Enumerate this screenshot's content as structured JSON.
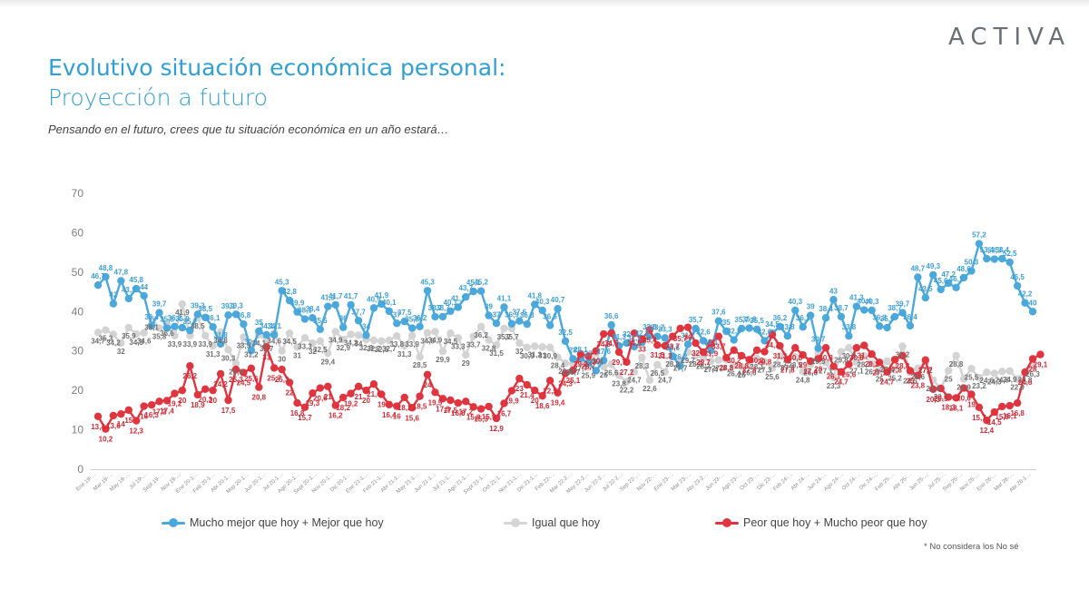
{
  "brand": "ACTIVA",
  "header": {
    "title": "Evolutivo situación económica personal:",
    "subtitle": "Proyección a futuro",
    "question": "Pensando en el futuro, crees que tu situación económica en un año estará…"
  },
  "legend": [
    {
      "label": "Mucho mejor que hoy + Mejor que hoy",
      "color": "#4aa8dc"
    },
    {
      "label": "Igual que hoy",
      "color": "#d6d6d6"
    },
    {
      "label": "Peor que hoy + Mucho peor que hoy",
      "color": "#e0353f"
    }
  ],
  "footnote": "* No considera los No sé",
  "chart_data": {
    "type": "line",
    "ylim": [
      0,
      70
    ],
    "yticks": [
      0,
      10,
      20,
      30,
      40,
      50,
      60,
      70
    ],
    "x_tick_labels": [
      "Ene 19-…",
      "Mar 19-…",
      "May 19-…",
      "Jul 19-…",
      "Sept 19-…",
      "Nov 19-…",
      "Ene 20-1…",
      "Feb 20-1…",
      "Abr 20-1…",
      "May 20-1…",
      "Jun 20-1…",
      "Jul 20-1…",
      "Ago 20-1…",
      "Sept 20-1…",
      "Nov 20-1…",
      "Dic 20-1…",
      "Ene 21-1…",
      "Feb 21-1…",
      "Abr 21-1…",
      "May 21-1…",
      "Jun 21-1…",
      "Jul 21-1…",
      "Ago 21-1…",
      "Sept 21-1…",
      "Oct 21-1…",
      "Nov 21-1…",
      "Dic 21-1…",
      "Feb 22-…",
      "Mar 22-2…",
      "May 22-2…",
      "Jun 22-2…",
      "Jul 22-2…",
      "Sep 22-…",
      "Nov 22-…",
      "Ene 23-…",
      "Mar 23-…",
      "Abr 23-2…",
      "Jun 23-…",
      "Ago 23-…",
      "Oct 23-…",
      "Dic 23-…",
      "Feb 24-…",
      "Abr 24-…",
      "Jun 24-…",
      "Ago 24-…",
      "Oct 24-…",
      "Dic 24-…",
      "Feb 25-…",
      "Abr 25-…",
      "Jun 25-…",
      "Jul 25-…",
      "Sep 25-…",
      "Nov 25-…",
      "Ene 26-…",
      "Mar 26-…",
      "Abr 26-1…"
    ],
    "series": [
      {
        "name": "Mucho mejor que hoy + Mejor que hoy",
        "color": "#4aa8dc",
        "values": [
          46.7,
          48.8,
          42,
          47.8,
          43.3,
          45.8,
          44,
          36.4,
          39.7,
          35.8,
          36.2,
          35.9,
          35.2,
          39.3,
          38.5,
          36.1,
          31.8,
          39.1,
          39.3,
          36.8,
          30.1,
          35,
          34.1,
          34.1,
          45.3,
          42.8,
          39.9,
          38.1,
          38.4,
          35.5,
          41.3,
          41.7,
          36,
          41.7,
          37.7,
          34,
          40.9,
          41.9,
          40.1,
          37,
          37.5,
          35.8,
          36.2,
          45.3,
          38.7,
          38.7,
          40.1,
          41.1,
          43.7,
          45.1,
          45.2,
          39,
          37,
          41.1,
          36.9,
          37.6,
          36.8,
          41.8,
          40.3,
          36.5,
          40.7,
          32.5,
          28,
          28.1,
          27,
          25,
          27.6,
          36.6,
          31.3,
          32,
          31.1,
          32.2,
          33.8,
          33.7,
          33.3,
          28.6,
          26.2,
          31.7,
          35.7,
          32.6,
          30.1,
          37.6,
          35,
          32.8,
          35.7,
          35.8,
          35.5,
          32.6,
          34.5,
          36.2,
          33.8,
          40.3,
          36.1,
          39,
          30.7,
          38.4,
          43,
          38.7,
          33.8,
          41.3,
          40.4,
          40.3,
          36.3,
          35.9,
          38.7,
          39.7,
          36.4,
          48.7,
          43.5,
          49.3,
          45.6,
          47.2,
          46.1,
          48.6,
          50.3,
          57.2,
          53.4,
          53.3,
          53.4,
          52.5,
          46.5,
          42.2,
          40
        ]
      },
      {
        "name": "Igual que hoy",
        "color": "#d3d3d3",
        "values": [
          34.7,
          35.3,
          34.2,
          32,
          35.9,
          34.3,
          34.6,
          38.1,
          35.8,
          36.6,
          33.9,
          41.9,
          33.9,
          38.5,
          33.9,
          31.3,
          34.8,
          30.3,
          26.8,
          33.5,
          31.2,
          34.1,
          32.7,
          34.6,
          30,
          34.5,
          31,
          33.3,
          32,
          32.5,
          29.4,
          34.9,
          32.9,
          34.2,
          34,
          32.9,
          32.7,
          32.5,
          32.7,
          33.8,
          31.3,
          33.9,
          28.5,
          34.6,
          34.9,
          29.9,
          34.5,
          33.3,
          29,
          33.7,
          36.2,
          32.8,
          31.5,
          35.7,
          35.7,
          32,
          30.9,
          31.2,
          31,
          30.9,
          28.4,
          26.9,
          26.7,
          27.7,
          25.9,
          29.4,
          26,
          26.6,
          23.8,
          22.2,
          24.7,
          28.3,
          22.6,
          26.5,
          24.7,
          28.8,
          27.7,
          29.7,
          28.8,
          28.2,
          27.4,
          27.7,
          27.8,
          26.4,
          26,
          26.6,
          28.1,
          27.3,
          25.6,
          28.7,
          27.9,
          28.5,
          24.8,
          26.6,
          29.5,
          27.1,
          23.3,
          29.8,
          30.8,
          27.1,
          28.7,
          26.8,
          25,
          27.4,
          25.2,
          31.2,
          24.5,
          25.6,
          27.2,
          22.6,
          20.5,
          25,
          28.8,
          22.9,
          25.5,
          23.2,
          24.6,
          24.3,
          24.8,
          24.9,
          22.9,
          24.8,
          26.3
        ]
      },
      {
        "name": "Peor que hoy + Mucho peor que hoy",
        "color": "#e0353f",
        "values": [
          13.4,
          10.2,
          13.6,
          14,
          15,
          12.3,
          16,
          16.3,
          17.2,
          17.4,
          19.2,
          20,
          26.2,
          18.9,
          20.3,
          20,
          24.2,
          17.5,
          25.3,
          24.5,
          25.6,
          20.8,
          31,
          25.7,
          25.3,
          22,
          16.8,
          15.7,
          19.3,
          20.6,
          21,
          16.2,
          18.2,
          19.2,
          21,
          20,
          21.6,
          19,
          16.4,
          16,
          18.2,
          15.6,
          18.5,
          24,
          19.5,
          17.9,
          17.5,
          16.8,
          17.2,
          15.8,
          15.3,
          15.9,
          12.9,
          16.7,
          19.9,
          23,
          21.4,
          20,
          18.6,
          22.5,
          19.4,
          24.3,
          25.1,
          29.2,
          28.7,
          30,
          34.3,
          34.5,
          29.7,
          27.2,
          34.5,
          33,
          35.4,
          31.5,
          31.3,
          33.7,
          35.7,
          36,
          32,
          29.7,
          31.9,
          33.7,
          28.3,
          30.2,
          28.8,
          27.8,
          30.2,
          29.8,
          34.1,
          31.3,
          27.8,
          30.8,
          29,
          27.4,
          28,
          30.8,
          26.1,
          24.7,
          26.6,
          30.8,
          31.4,
          29.2,
          27.1,
          24.7,
          27.8,
          28.8,
          25,
          23.8,
          27.7,
          20.3,
          20.5,
          18.3,
          18.1,
          20.6,
          19,
          15.7,
          12.4,
          14.5,
          15.9,
          16.1,
          16.8,
          24.6,
          28,
          29.1
        ]
      }
    ]
  }
}
